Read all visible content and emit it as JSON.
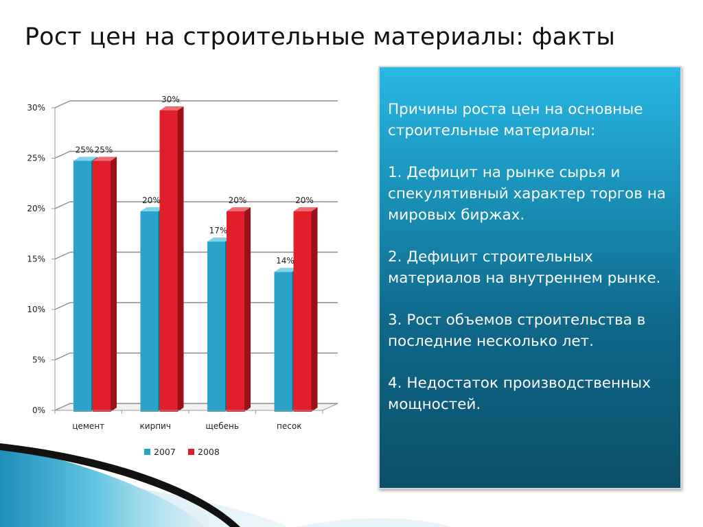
{
  "slide": {
    "title": "Рост цен на строительные материалы: факты"
  },
  "info_box": {
    "intro": "Причины роста цен на основные строительные материалы:",
    "reasons": [
      "1. Дефицит на рынке сырья и спекулятивный характер торгов на мировых биржах.",
      "2. Дефицит строительных материалов на внутреннем рынке.",
      "3. Рост объемов строительства в последние несколько лет.",
      "4. Недостаток производственных мощностей."
    ]
  },
  "colors": {
    "series_2007": "#2aa3c8",
    "series_2008": "#e01f2a",
    "box_top": "#27b9e4",
    "box_bottom": "#0b4f6a"
  },
  "chart_data": {
    "type": "bar",
    "categories": [
      "цемент",
      "кирпич",
      "щебень",
      "песок"
    ],
    "series": [
      {
        "name": "2007",
        "values": [
          25,
          20,
          17,
          14
        ]
      },
      {
        "name": "2008",
        "values": [
          25,
          30,
          20,
          20
        ]
      }
    ],
    "ylim": [
      0,
      30
    ],
    "y_ticks": [
      0,
      5,
      10,
      15,
      20,
      25,
      30
    ],
    "y_tick_labels": [
      "0%",
      "5%",
      "10%",
      "15%",
      "20%",
      "25%",
      "30%"
    ],
    "data_labels": [
      [
        "25%",
        "20%",
        "17%",
        "14%"
      ],
      [
        "25%",
        "30%",
        "20%",
        "20%"
      ]
    ],
    "legend_position": "bottom",
    "grid": true,
    "style": "3d-columns"
  }
}
